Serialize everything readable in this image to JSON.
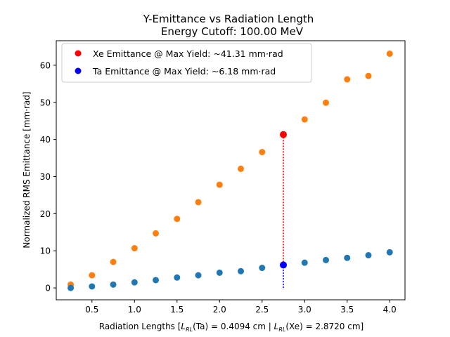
{
  "chart_data": {
    "type": "scatter",
    "title": "Y-Emittance vs Radiation Length",
    "subtitle": "Energy Cutoff: 100.00 MeV",
    "xlabel_parts": {
      "prefix": "Radiation Lengths [",
      "ta_sym": "L",
      "ta_sub": "RL",
      "ta_arg": "(Ta) = 0.4094 cm | ",
      "xe_sym": "L",
      "xe_sub": "RL",
      "xe_arg": "(Xe) = 2.8720 cm]"
    },
    "ylabel": "Normalized RMS Emittance [mm·rad]",
    "xlim": [
      0.08,
      4.18
    ],
    "ylim": [
      -3.2,
      66.6
    ],
    "x_ticks": [
      0.5,
      1.0,
      1.5,
      2.0,
      2.5,
      3.0,
      3.5,
      4.0
    ],
    "x_tick_labels": [
      "0.5",
      "1.0",
      "1.5",
      "2.0",
      "2.5",
      "3.0",
      "3.5",
      "4.0"
    ],
    "y_ticks": [
      0,
      10,
      20,
      30,
      40,
      50,
      60
    ],
    "y_tick_labels": [
      "0",
      "10",
      "20",
      "30",
      "40",
      "50",
      "60"
    ],
    "grid": false,
    "legend_placement": "top-left",
    "series": [
      {
        "key": "xe",
        "color": "#ff7f0e",
        "x": [
          0.25,
          0.5,
          0.75,
          1.0,
          1.25,
          1.5,
          1.75,
          2.0,
          2.25,
          2.5,
          2.75,
          3.0,
          3.25,
          3.5,
          3.75,
          4.0
        ],
        "y": [
          0.9,
          3.4,
          7.0,
          10.7,
          14.7,
          18.6,
          23.1,
          27.8,
          32.1,
          36.6,
          41.3,
          45.4,
          49.9,
          56.2,
          57.1,
          63.1
        ]
      },
      {
        "key": "ta",
        "color": "#1f77b4",
        "x": [
          0.25,
          0.5,
          0.75,
          1.0,
          1.25,
          1.5,
          1.75,
          2.0,
          2.25,
          2.5,
          2.75,
          3.0,
          3.25,
          3.5,
          3.75,
          4.0
        ],
        "y": [
          0.0,
          0.4,
          0.9,
          1.5,
          2.1,
          2.8,
          3.4,
          4.1,
          4.5,
          5.4,
          6.18,
          6.8,
          7.5,
          8.1,
          8.8,
          9.6
        ]
      }
    ],
    "highlights": [
      {
        "label": "Xe Emittance @ Max Yield: ~41.31 mm·rad",
        "x": 2.75,
        "y": 41.31,
        "color": "#ff0000",
        "line_from": 6.18
      },
      {
        "label": "Ta Emittance @ Max Yield: ~6.18 mm·rad",
        "x": 2.75,
        "y": 6.18,
        "color": "#0000ff",
        "line_from": 0
      }
    ]
  }
}
